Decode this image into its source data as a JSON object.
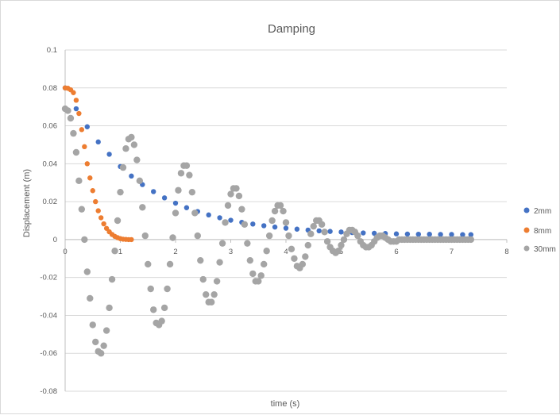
{
  "chart_data": {
    "type": "scatter",
    "title": "Damping",
    "xlabel": "time (s)",
    "ylabel": "Displacement (m)",
    "xlim": [
      0,
      8
    ],
    "ylim": [
      -0.08,
      0.1
    ],
    "x_ticks": [
      0,
      1,
      2,
      3,
      4,
      5,
      6,
      7,
      8
    ],
    "y_ticks": [
      -0.08,
      -0.06,
      -0.04,
      -0.02,
      0,
      0.02,
      0.04,
      0.06,
      0.08,
      0.1
    ],
    "x_tick_labels": [
      "0",
      "1",
      "2",
      "3",
      "4",
      "5",
      "6",
      "7",
      "8"
    ],
    "y_tick_labels": [
      "-0.08",
      "-0.06",
      "-0.04",
      "-0.02",
      "0",
      "0.02",
      "0.04",
      "0.06",
      "0.08",
      "0.1"
    ],
    "grid": true,
    "legend_position": "right",
    "series": [
      {
        "name": "2mm",
        "color": "#4472c4",
        "x": [
          0,
          0.2,
          0.4,
          0.6,
          0.8,
          1.0,
          1.2,
          1.4,
          1.6,
          1.8,
          2.0,
          2.2,
          2.4,
          2.6,
          2.8,
          3.0,
          3.2,
          3.4,
          3.6,
          3.8,
          4.0,
          4.2,
          4.4,
          4.6,
          4.8,
          5.0,
          5.2,
          5.4,
          5.6,
          5.8,
          6.0,
          6.2,
          6.4,
          6.6,
          6.8,
          7.0,
          7.2,
          7.35
        ],
        "y": [
          0.08,
          0.069,
          0.0595,
          0.0515,
          0.045,
          0.0385,
          0.0335,
          0.029,
          0.0253,
          0.022,
          0.0192,
          0.0168,
          0.0148,
          0.013,
          0.0115,
          0.0102,
          0.0091,
          0.0082,
          0.0073,
          0.0066,
          0.006,
          0.0055,
          0.005,
          0.0046,
          0.0043,
          0.004,
          0.0037,
          0.0035,
          0.0033,
          0.0032,
          0.003,
          0.0029,
          0.0028,
          0.0028,
          0.0027,
          0.0027,
          0.0026,
          0.0026
        ]
      },
      {
        "name": "8mm",
        "color": "#ed7d31",
        "x": [
          0,
          0.05,
          0.1,
          0.15,
          0.2,
          0.25,
          0.3,
          0.35,
          0.4,
          0.45,
          0.5,
          0.55,
          0.6,
          0.65,
          0.7,
          0.75,
          0.8,
          0.85,
          0.9,
          0.95,
          1.0,
          1.05,
          1.1,
          1.15,
          1.2
        ],
        "y": [
          0.08,
          0.0798,
          0.079,
          0.0775,
          0.0735,
          0.0665,
          0.058,
          0.049,
          0.04,
          0.0325,
          0.0258,
          0.02,
          0.0152,
          0.0115,
          0.0083,
          0.0059,
          0.0041,
          0.0027,
          0.0017,
          0.001,
          0.0005,
          0.0002,
          0.0001,
          0.0,
          0.0
        ]
      },
      {
        "name": "30mm",
        "color": "#a5a5a5",
        "x": [
          0,
          0.05,
          0.1,
          0.15,
          0.2,
          0.25,
          0.3,
          0.35,
          0.4,
          0.45,
          0.5,
          0.55,
          0.6,
          0.65,
          0.7,
          0.75,
          0.8,
          0.85,
          0.9,
          0.95,
          1.0,
          1.05,
          1.1,
          1.15,
          1.2,
          1.25,
          1.3,
          1.35,
          1.4,
          1.45,
          1.5,
          1.55,
          1.6,
          1.65,
          1.7,
          1.75,
          1.8,
          1.85,
          1.9,
          1.95,
          2.0,
          2.05,
          2.1,
          2.15,
          2.2,
          2.25,
          2.3,
          2.35,
          2.4,
          2.45,
          2.5,
          2.55,
          2.6,
          2.65,
          2.7,
          2.75,
          2.8,
          2.85,
          2.9,
          2.95,
          3.0,
          3.05,
          3.1,
          3.15,
          3.2,
          3.25,
          3.3,
          3.35,
          3.4,
          3.45,
          3.5,
          3.55,
          3.6,
          3.65,
          3.7,
          3.75,
          3.8,
          3.85,
          3.9,
          3.95,
          4.0,
          4.05,
          4.1,
          4.15,
          4.2,
          4.25,
          4.3,
          4.35,
          4.4,
          4.45,
          4.5,
          4.55,
          4.6,
          4.65,
          4.7,
          4.75,
          4.8,
          4.85,
          4.9,
          4.95,
          5.0,
          5.05,
          5.1,
          5.15,
          5.2,
          5.25,
          5.3,
          5.35,
          5.4,
          5.45,
          5.5,
          5.55,
          5.6,
          5.65,
          5.7,
          5.75,
          5.8,
          5.85,
          5.9,
          5.95,
          6.0,
          6.05,
          6.1,
          6.15,
          6.2,
          6.25,
          6.3,
          6.35,
          6.4,
          6.45,
          6.5,
          6.55,
          6.6,
          6.65,
          6.7,
          6.75,
          6.8,
          6.85,
          6.9,
          6.95,
          7.0,
          7.05,
          7.1,
          7.15,
          7.2,
          7.25,
          7.3,
          7.35
        ],
        "y": [
          0.069,
          0.068,
          0.064,
          0.056,
          0.046,
          0.031,
          0.016,
          0.0,
          -0.017,
          -0.031,
          -0.045,
          -0.054,
          -0.059,
          -0.06,
          -0.056,
          -0.048,
          -0.036,
          -0.021,
          -0.006,
          0.01,
          0.025,
          0.038,
          0.048,
          0.053,
          0.054,
          0.05,
          0.042,
          0.031,
          0.017,
          0.002,
          -0.013,
          -0.026,
          -0.037,
          -0.044,
          -0.045,
          -0.043,
          -0.036,
          -0.026,
          -0.013,
          0.001,
          0.014,
          0.026,
          0.035,
          0.039,
          0.039,
          0.034,
          0.025,
          0.014,
          0.002,
          -0.011,
          -0.021,
          -0.029,
          -0.033,
          -0.033,
          -0.029,
          -0.022,
          -0.012,
          -0.002,
          0.009,
          0.018,
          0.024,
          0.027,
          0.027,
          0.023,
          0.016,
          0.008,
          -0.002,
          -0.011,
          -0.018,
          -0.022,
          -0.022,
          -0.019,
          -0.013,
          -0.006,
          0.002,
          0.01,
          0.015,
          0.018,
          0.018,
          0.015,
          0.009,
          0.002,
          -0.005,
          -0.01,
          -0.014,
          -0.015,
          -0.013,
          -0.009,
          -0.003,
          0.003,
          0.007,
          0.01,
          0.01,
          0.008,
          0.004,
          -0.001,
          -0.004,
          -0.006,
          -0.007,
          -0.006,
          -0.003,
          0.0,
          0.003,
          0.005,
          0.005,
          0.004,
          0.002,
          -0.001,
          -0.003,
          -0.004,
          -0.004,
          -0.003,
          -0.001,
          0.001,
          0.002,
          0.002,
          0.001,
          0.0,
          -0.001,
          -0.001,
          -0.001,
          0.0,
          0.0,
          0.0,
          0.0,
          0.0,
          0.0,
          0.0,
          0.0,
          0.0,
          0.0,
          0.0,
          0.0,
          0.0,
          0.0,
          0.0,
          0.0,
          0.0,
          0.0,
          0.0,
          0.0,
          0.0,
          0.0,
          0.0,
          0.0,
          0.0,
          0.0,
          0.0
        ]
      }
    ]
  }
}
